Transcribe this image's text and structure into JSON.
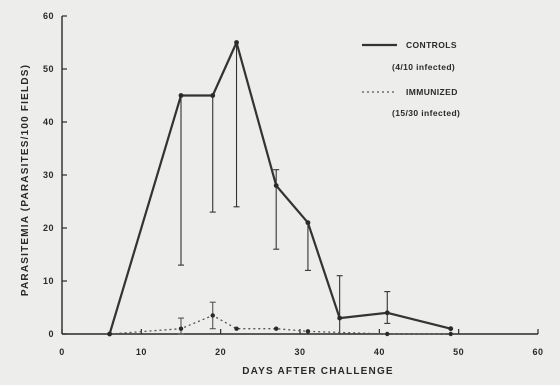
{
  "chart_data": {
    "type": "line",
    "xlabel": "DAYS AFTER CHALLENGE",
    "ylabel": "PARASITEMIA (PARASITES/100 FIELDS)",
    "xlim": [
      0,
      60
    ],
    "ylim": [
      0,
      60
    ],
    "xticks": [
      0,
      10,
      20,
      30,
      40,
      50,
      60
    ],
    "yticks": [
      0,
      10,
      20,
      30,
      40,
      50,
      60
    ],
    "grid": false,
    "legend_position": "top-right",
    "series": [
      {
        "name": "CONTROLS",
        "legend_note": "(4/10 infected)",
        "style": "solid",
        "color": "#333333",
        "x": [
          6,
          15,
          19,
          22,
          27,
          31,
          35,
          41,
          49
        ],
        "y": [
          0,
          45,
          45,
          55,
          28,
          21,
          3,
          4,
          1
        ],
        "err_low": [
          null,
          13,
          23,
          24,
          16,
          12,
          0,
          2,
          null
        ],
        "err_high": [
          null,
          null,
          null,
          null,
          31,
          null,
          11,
          8,
          null
        ]
      },
      {
        "name": "IMMUNIZED",
        "legend_note": "(15/30 infected)",
        "style": "dotted",
        "color": "#555555",
        "x": [
          6,
          15,
          19,
          22,
          27,
          31,
          41,
          49
        ],
        "y": [
          0,
          1,
          3.5,
          1,
          1,
          0.5,
          0,
          0
        ],
        "err_low": [
          null,
          0,
          1,
          null,
          null,
          null,
          null,
          null
        ],
        "err_high": [
          null,
          3,
          6,
          null,
          null,
          null,
          null,
          null
        ]
      }
    ]
  }
}
